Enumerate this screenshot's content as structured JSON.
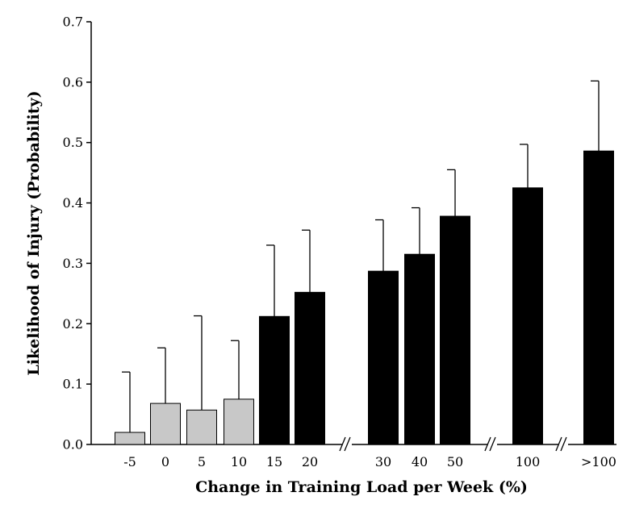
{
  "chart_data": {
    "type": "bar",
    "title": "",
    "xlabel": "Change in Training Load per Week (%)",
    "ylabel": "Likelihood of Injury (Probability)",
    "ylim": [
      0,
      0.7
    ],
    "yticks": [
      "0.0",
      "0.1",
      "0.2",
      "0.3",
      "0.4",
      "0.5",
      "0.6",
      "0.7"
    ],
    "grid": false,
    "legend": "none",
    "axis_breaks": [
      "between 20 and 30",
      "between 50 and 100",
      "between 100 and >100"
    ],
    "colors": {
      "low": "#c8c8c8",
      "high": "#000000",
      "error_bar": "#000000"
    },
    "categories": [
      "-5",
      "0",
      "5",
      "10",
      "15",
      "20",
      "30",
      "40",
      "50",
      "100",
      ">100"
    ],
    "values": [
      0.02,
      0.068,
      0.057,
      0.075,
      0.212,
      0.252,
      0.287,
      0.315,
      0.378,
      0.425,
      0.486
    ],
    "error_upper": [
      0.12,
      0.16,
      0.213,
      0.172,
      0.33,
      0.355,
      0.372,
      0.392,
      0.455,
      0.497,
      0.602
    ],
    "bar_color_group": [
      "low",
      "low",
      "low",
      "low",
      "high",
      "high",
      "high",
      "high",
      "high",
      "high",
      "high"
    ]
  }
}
